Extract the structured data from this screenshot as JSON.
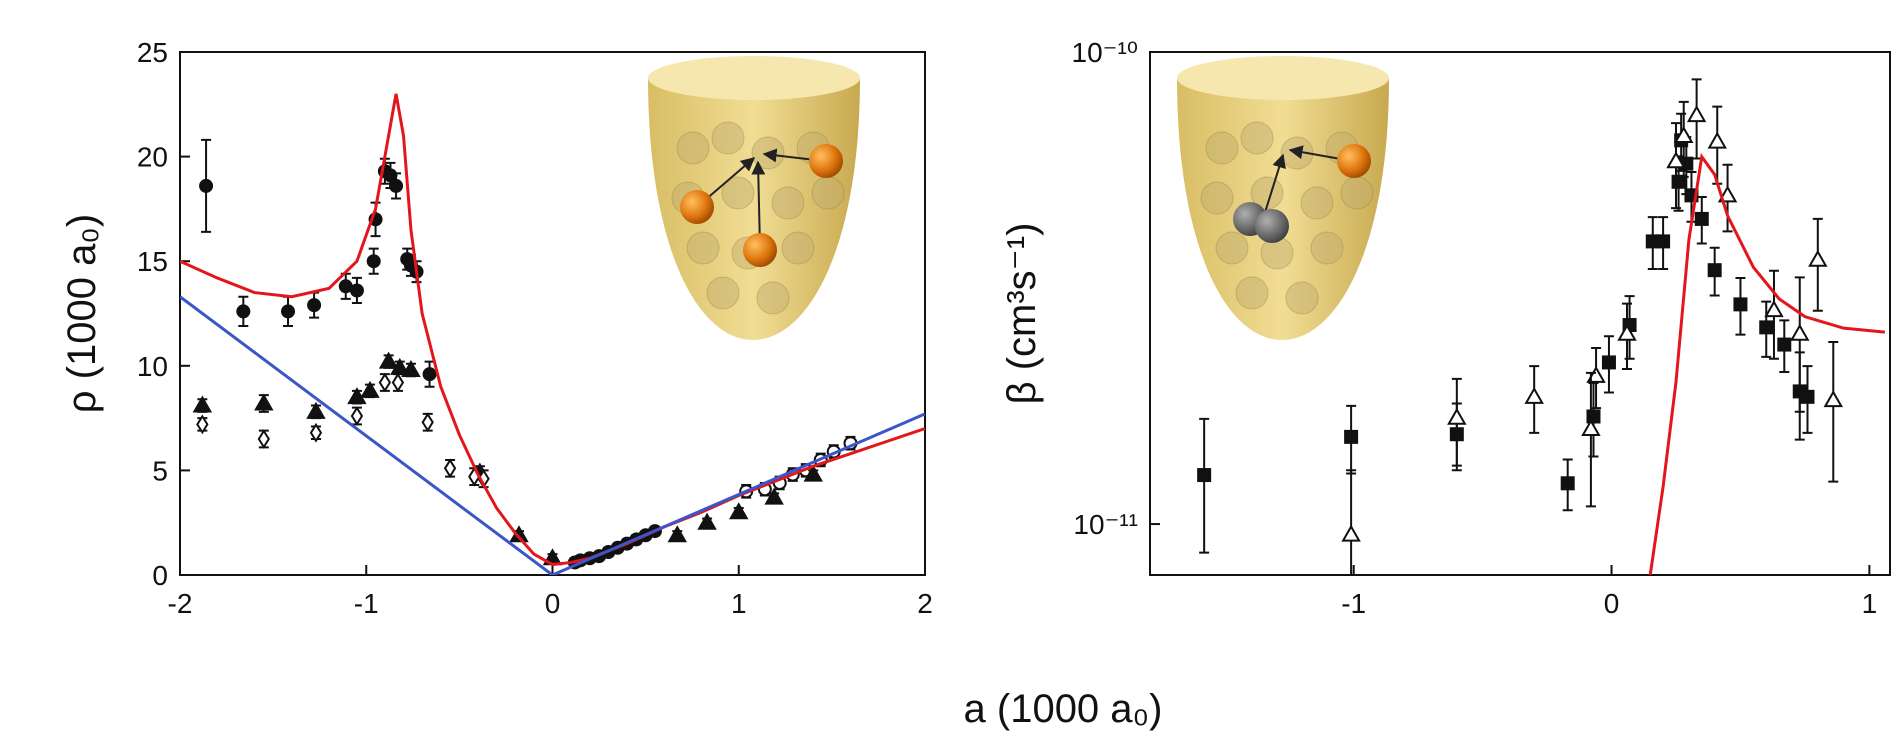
{
  "xlabel": "a (1000 a₀)",
  "chart_data": [
    {
      "type": "scatter",
      "ylabel": "ρ (1000 a₀)",
      "yscale": "linear",
      "grid": false,
      "xlim": [
        -2,
        2
      ],
      "ylim": [
        0,
        25
      ],
      "xticks": [
        -2,
        -1,
        0,
        1,
        2
      ],
      "yticks": [
        0,
        5,
        10,
        15,
        20,
        25
      ],
      "series": [
        {
          "marker": "circle",
          "filled": true,
          "color": "#111111",
          "x": [
            -1.86,
            -1.66,
            -1.42,
            -1.28,
            -1.11,
            -1.05,
            -0.96,
            -0.95,
            -0.9,
            -0.87,
            -0.84,
            -0.78,
            -0.76,
            -0.73,
            -0.66,
            0.12,
            0.15,
            0.2,
            0.25,
            0.3,
            0.35,
            0.4,
            0.45,
            0.5,
            0.55
          ],
          "values": [
            18.6,
            12.6,
            12.6,
            12.9,
            13.8,
            13.6,
            15.0,
            17.0,
            19.3,
            19.1,
            18.6,
            15.1,
            14.8,
            14.5,
            9.6,
            0.6,
            0.7,
            0.8,
            0.9,
            1.1,
            1.3,
            1.5,
            1.7,
            1.9,
            2.1
          ],
          "errors": [
            2.2,
            0.7,
            0.7,
            0.6,
            0.6,
            0.6,
            0.6,
            0.8,
            0.6,
            0.6,
            0.6,
            0.5,
            0.5,
            0.5,
            0.6,
            0.2,
            0.2,
            0.2,
            0.2,
            0.2,
            0.2,
            0.2,
            0.2,
            0.2,
            0.2
          ]
        },
        {
          "marker": "circle",
          "filled": false,
          "color": "#111111",
          "x": [
            1.04,
            1.14,
            1.22,
            1.29,
            1.36,
            1.44,
            1.51,
            1.6
          ],
          "values": [
            4.0,
            4.1,
            4.4,
            4.8,
            5.0,
            5.5,
            5.9,
            6.3
          ],
          "errors": [
            0.3,
            0.3,
            0.3,
            0.3,
            0.3,
            0.3,
            0.3,
            0.3
          ]
        },
        {
          "marker": "triangle",
          "filled": true,
          "color": "#111111",
          "x": [
            -1.88,
            -1.55,
            -1.27,
            -1.05,
            -0.98,
            -0.88,
            -0.82,
            -0.76,
            -0.39,
            -0.18,
            0.0,
            0.67,
            0.83,
            1.0,
            1.19,
            1.4
          ],
          "values": [
            8.1,
            8.2,
            7.8,
            8.5,
            8.8,
            10.2,
            9.9,
            9.8,
            4.9,
            1.9,
            0.8,
            1.9,
            2.5,
            3.0,
            3.7,
            4.8
          ],
          "errors": [
            0.3,
            0.4,
            0.3,
            0.3,
            0.3,
            0.3,
            0.3,
            0.3,
            0.3,
            0.2,
            0.2,
            0.2,
            0.2,
            0.2,
            0.2,
            0.2
          ]
        },
        {
          "marker": "diamond",
          "filled": false,
          "color": "#111111",
          "x": [
            -1.88,
            -1.55,
            -1.27,
            -1.05,
            -0.9,
            -0.83,
            -0.67,
            -0.55,
            -0.42,
            -0.37
          ],
          "values": [
            7.2,
            6.5,
            6.8,
            7.6,
            9.2,
            9.2,
            7.3,
            5.1,
            4.7,
            4.6
          ],
          "errors": [
            0.3,
            0.4,
            0.3,
            0.4,
            0.4,
            0.4,
            0.4,
            0.4,
            0.4,
            0.4
          ]
        },
        {
          "mode": "line",
          "color": "#e3161c",
          "x": [
            -2,
            -1.8,
            -1.6,
            -1.4,
            -1.2,
            -1.05,
            -0.95,
            -0.88,
            -0.84,
            -0.8,
            -0.76,
            -0.7,
            -0.6,
            -0.5,
            -0.4,
            -0.3,
            -0.2,
            -0.1,
            0,
            0.1,
            0.2,
            0.4,
            0.6,
            0.8,
            1.0,
            1.2,
            1.4,
            1.6,
            1.8,
            2.0
          ],
          "values": [
            15.0,
            14.2,
            13.5,
            13.3,
            13.7,
            15.0,
            17.5,
            21.0,
            23.0,
            21.0,
            16.5,
            12.5,
            9.0,
            6.7,
            4.8,
            3.2,
            2.0,
            1.0,
            0.5,
            0.6,
            0.8,
            1.5,
            2.3,
            3.0,
            3.8,
            4.5,
            5.2,
            5.8,
            6.4,
            7.0
          ]
        },
        {
          "mode": "line",
          "color": "#3a56c8",
          "x": [
            -2,
            0,
            2
          ],
          "values": [
            13.3,
            0,
            7.7
          ]
        }
      ]
    },
    {
      "type": "scatter",
      "ylabel": "β (cm³s⁻¹)",
      "yscale": "log",
      "grid": false,
      "xlim": [
        -1.79,
        1.08
      ],
      "ylim": [
        7.8e-12,
        1e-10
      ],
      "xticks": [
        -1,
        0,
        1
      ],
      "yticks": [
        {
          "value": 1e-11,
          "label": "10⁻¹¹"
        },
        {
          "value": 1e-10,
          "label": "10⁻¹⁰"
        }
      ],
      "series": [
        {
          "marker": "square",
          "filled": true,
          "color": "#111111",
          "x": [
            -1.58,
            -1.01,
            -0.6,
            -0.17,
            -0.07,
            -0.01,
            0.07,
            0.16,
            0.2,
            0.26,
            0.27,
            0.29,
            0.31,
            0.35,
            0.4,
            0.5,
            0.6,
            0.67,
            0.73,
            0.76
          ],
          "values": [
            1.27e-11,
            1.53e-11,
            1.55e-11,
            1.22e-11,
            1.69e-11,
            2.2e-11,
            2.64e-11,
            3.97e-11,
            3.97e-11,
            5.31e-11,
            6.5e-11,
            5.8e-11,
            4.97e-11,
            4.43e-11,
            3.45e-11,
            2.92e-11,
            2.61e-11,
            2.4e-11,
            1.91e-11,
            1.86e-11
          ],
          "errors": [
            4e-12,
            2.5e-12,
            2.5e-12,
            1.5e-12,
            3e-12,
            3e-12,
            4e-12,
            5e-12,
            5e-12,
            7e-12,
            9e-12,
            8e-12,
            6e-12,
            5e-12,
            4e-12,
            4e-12,
            3.5e-12,
            3e-12,
            4e-12,
            3e-12
          ]
        },
        {
          "marker": "triangle",
          "filled": false,
          "color": "#111111",
          "x": [
            -1.01,
            -0.6,
            -0.3,
            -0.06,
            -0.08,
            0.06,
            0.25,
            0.28,
            0.33,
            0.41,
            0.45,
            0.63,
            0.73,
            0.8,
            0.86
          ],
          "values": [
            9.5e-12,
            1.68e-11,
            1.86e-11,
            2.06e-11,
            1.59e-11,
            2.53e-11,
            5.87e-11,
            6.64e-11,
            7.35e-11,
            6.46e-11,
            4.97e-11,
            2.84e-11,
            2.53e-11,
            3.63e-11,
            1.83e-11
          ],
          "errors": [
            3.5e-12,
            3.5e-12,
            3e-12,
            3e-12,
            5e-12,
            4e-12,
            1.2e-11,
            1.2e-11,
            1.4e-11,
            1.2e-11,
            8e-12,
            6e-12,
            8e-12,
            8e-12,
            6e-12
          ]
        },
        {
          "mode": "line",
          "color": "#e3161c",
          "x": [
            0.15,
            0.2,
            0.25,
            0.3,
            0.35,
            0.4,
            0.45,
            0.55,
            0.65,
            0.75,
            0.9,
            1.06
          ],
          "values": [
            7.8e-12,
            1.2e-11,
            2e-11,
            4e-11,
            6e-11,
            5.5e-11,
            4.5e-11,
            3.5e-11,
            3e-11,
            2.75e-11,
            2.6e-11,
            2.55e-11
          ]
        }
      ]
    }
  ]
}
